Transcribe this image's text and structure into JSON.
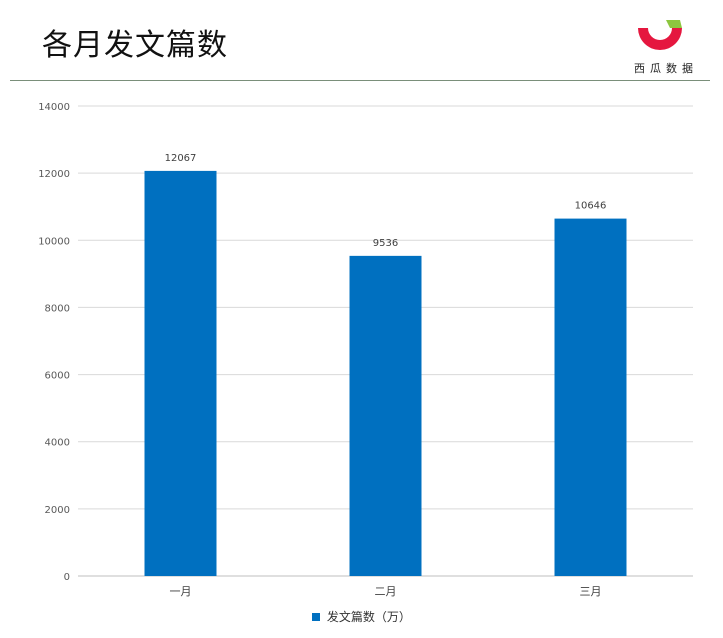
{
  "header": {
    "title": "各月发文篇数",
    "logo_text": "西瓜数据"
  },
  "colors": {
    "bar": "#0070C0",
    "logo_red": "#E5173F",
    "logo_green": "#8DC63F",
    "grid": "#D9D9D9"
  },
  "chart_data": {
    "type": "bar",
    "categories": [
      "一月",
      "二月",
      "三月"
    ],
    "series": [
      {
        "name": "发文篇数（万）",
        "values": [
          12067,
          9536,
          10646
        ]
      }
    ],
    "ylim": [
      0,
      14000
    ],
    "yticks": [
      0,
      2000,
      4000,
      6000,
      8000,
      10000,
      12000,
      14000
    ],
    "grid": true,
    "legend": "bottom",
    "data_labels": true
  }
}
